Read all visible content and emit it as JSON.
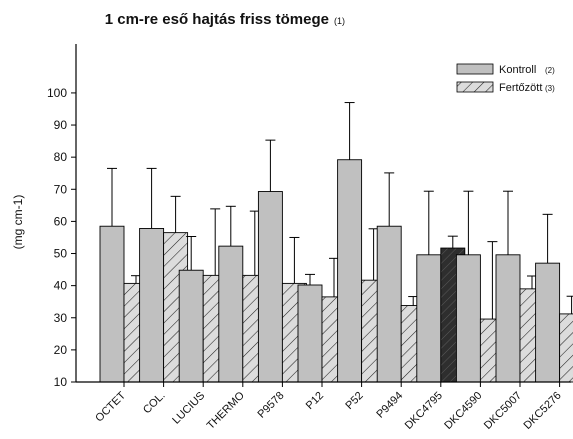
{
  "chart_data": {
    "type": "bar",
    "title": "1 cm-re eső hajtás friss tömege",
    "title_note": "(1)",
    "ylabel": "(mg cm-1)",
    "xlabel": "",
    "ylim": [
      10,
      105
    ],
    "yticks": [
      10,
      20,
      30,
      40,
      50,
      60,
      70,
      80,
      90,
      100
    ],
    "grid": false,
    "legend_position": "top-right",
    "categories": [
      "OCTET",
      "COL.",
      "LUCIUS",
      "THERMO",
      "P9578",
      "P12",
      "P52",
      "P9494",
      "DKC4795",
      "DKC4590",
      "DKC5007",
      "DKC5276"
    ],
    "series": [
      {
        "name": "Kontroll",
        "note": "(2)",
        "fill": "#c0c0c0",
        "hatch": false,
        "values": [
          58.5,
          57.8,
          44.8,
          52.3,
          69.3,
          40.2,
          79.2,
          58.5,
          49.6,
          49.6,
          49.6,
          47.0
        ],
        "error_up": [
          18.0,
          18.7,
          10.5,
          12.4,
          16.0,
          3.3,
          17.8,
          16.6,
          19.8,
          19.8,
          19.8,
          15.2
        ]
      },
      {
        "name": "Fertőzött",
        "note": "(3)",
        "fill": "#d8d8d8",
        "hatch": true,
        "values": [
          40.7,
          56.5,
          43.2,
          43.2,
          40.7,
          36.5,
          41.7,
          33.8,
          51.7,
          29.6,
          39.0,
          31.2
        ],
        "error_up": [
          2.4,
          11.3,
          20.7,
          20.0,
          14.3,
          12.0,
          16.0,
          2.8,
          3.7,
          24.1,
          4.0,
          5.5
        ]
      }
    ],
    "highlight": {
      "series": 1,
      "index": 8,
      "fill": "#3a3a3a"
    }
  }
}
